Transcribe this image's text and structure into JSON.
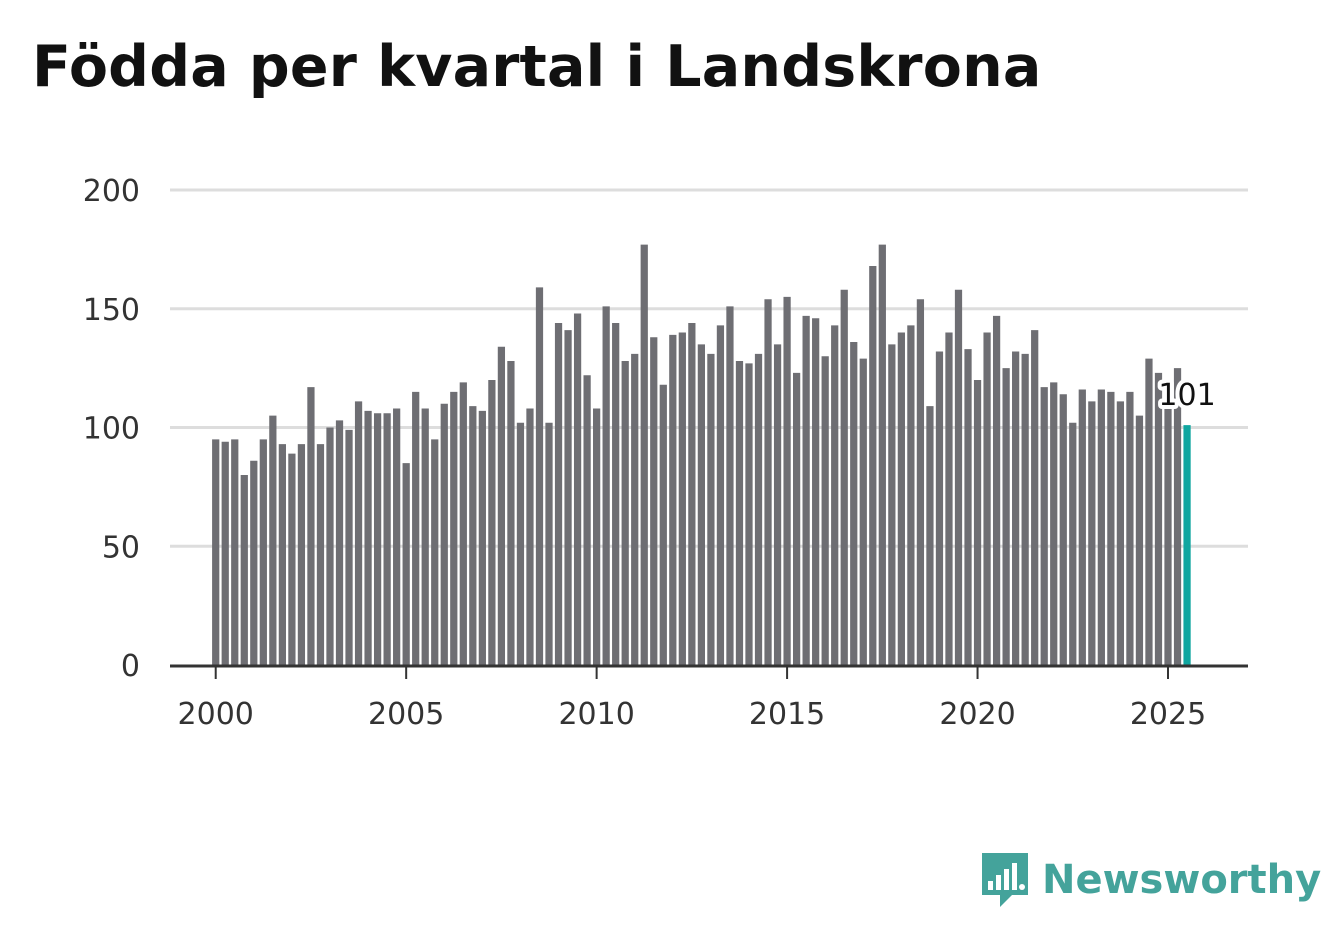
{
  "title": "Födda per kvartal i Landskrona",
  "brand": {
    "name": "Newsworthy",
    "icon": "newsworthy-logo-icon",
    "color": "#44a39b"
  },
  "colors": {
    "bar": "#6e6e73",
    "highlight": "#0fa6a0",
    "grid": "#dddddd",
    "axis": "#333333"
  },
  "chart_data": {
    "type": "bar",
    "title": "Födda per kvartal i Landskrona",
    "xlabel": "",
    "ylabel": "",
    "ylim": [
      0,
      200
    ],
    "yticks": [
      0,
      50,
      100,
      150,
      200
    ],
    "xlim": [
      1998.8,
      2027.1
    ],
    "xticks": [
      2000,
      2005,
      2010,
      2015,
      2020,
      2025
    ],
    "grid": true,
    "start_year": 2000,
    "periods_per_year": 4,
    "values": [
      95,
      94,
      95,
      80,
      86,
      95,
      105,
      93,
      89,
      93,
      117,
      93,
      100,
      103,
      99,
      111,
      107,
      106,
      106,
      108,
      85,
      115,
      108,
      95,
      110,
      115,
      119,
      109,
      107,
      120,
      134,
      128,
      102,
      108,
      159,
      102,
      144,
      141,
      148,
      122,
      108,
      151,
      144,
      128,
      131,
      177,
      138,
      118,
      139,
      140,
      144,
      135,
      131,
      143,
      151,
      128,
      127,
      131,
      154,
      135,
      155,
      123,
      147,
      146,
      130,
      143,
      158,
      136,
      129,
      168,
      177,
      135,
      140,
      143,
      154,
      109,
      132,
      140,
      158,
      133,
      120,
      140,
      147,
      125,
      132,
      131,
      141,
      117,
      119,
      114,
      102,
      116,
      111,
      116,
      115,
      111,
      115,
      105,
      129,
      123,
      117,
      125,
      101
    ],
    "highlight_index": 102,
    "highlight_label": "101"
  }
}
